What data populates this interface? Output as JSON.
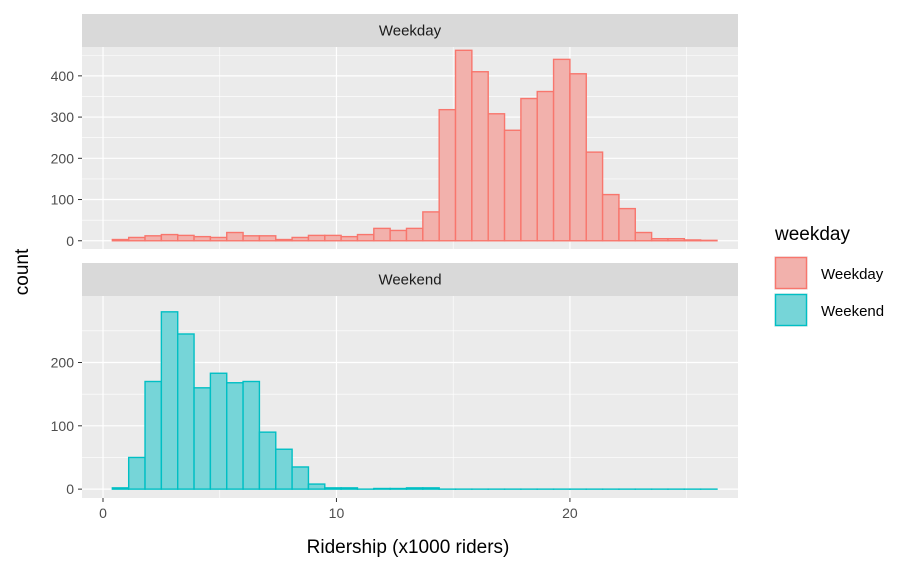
{
  "chart_data": {
    "type": "bar",
    "subtype": "faceted-histogram",
    "xlabel": "Ridership (x1000 riders)",
    "ylabel": "count",
    "xlim": [
      -0.9,
      27.2
    ],
    "x_ticks": [
      0,
      10,
      20
    ],
    "bin_width": 0.7,
    "legend": {
      "title": "weekday",
      "position": "right",
      "entries": [
        {
          "label": "Weekday",
          "fill": "#F8766D",
          "outline": "#F8766D"
        },
        {
          "label": "Weekend",
          "fill": "#00BFC4",
          "outline": "#00BFC4"
        }
      ]
    },
    "panels": [
      {
        "strip": "Weekday",
        "series": "Weekday",
        "ylim": [
          -20,
          470
        ],
        "y_ticks": [
          0,
          100,
          200,
          300,
          400
        ],
        "bins": [
          {
            "x0": 0.4,
            "x1": 1.1,
            "count": 3
          },
          {
            "x0": 1.1,
            "x1": 1.8,
            "count": 8
          },
          {
            "x0": 1.8,
            "x1": 2.5,
            "count": 12
          },
          {
            "x0": 2.5,
            "x1": 3.2,
            "count": 15
          },
          {
            "x0": 3.2,
            "x1": 3.9,
            "count": 13
          },
          {
            "x0": 3.9,
            "x1": 4.6,
            "count": 10
          },
          {
            "x0": 4.6,
            "x1": 5.3,
            "count": 8
          },
          {
            "x0": 5.3,
            "x1": 6.0,
            "count": 20
          },
          {
            "x0": 6.0,
            "x1": 6.7,
            "count": 12
          },
          {
            "x0": 6.7,
            "x1": 7.4,
            "count": 12
          },
          {
            "x0": 7.4,
            "x1": 8.1,
            "count": 3
          },
          {
            "x0": 8.1,
            "x1": 8.8,
            "count": 8
          },
          {
            "x0": 8.8,
            "x1": 9.5,
            "count": 13
          },
          {
            "x0": 9.5,
            "x1": 10.2,
            "count": 13
          },
          {
            "x0": 10.2,
            "x1": 10.9,
            "count": 10
          },
          {
            "x0": 10.9,
            "x1": 11.6,
            "count": 15
          },
          {
            "x0": 11.6,
            "x1": 12.3,
            "count": 30
          },
          {
            "x0": 12.3,
            "x1": 13.0,
            "count": 25
          },
          {
            "x0": 13.0,
            "x1": 13.7,
            "count": 30
          },
          {
            "x0": 13.7,
            "x1": 14.4,
            "count": 70
          },
          {
            "x0": 14.4,
            "x1": 15.1,
            "count": 318
          },
          {
            "x0": 15.1,
            "x1": 15.8,
            "count": 462
          },
          {
            "x0": 15.8,
            "x1": 16.5,
            "count": 410
          },
          {
            "x0": 16.5,
            "x1": 17.2,
            "count": 308
          },
          {
            "x0": 17.2,
            "x1": 17.9,
            "count": 268
          },
          {
            "x0": 17.9,
            "x1": 18.6,
            "count": 345
          },
          {
            "x0": 18.6,
            "x1": 19.3,
            "count": 362
          },
          {
            "x0": 19.3,
            "x1": 20.0,
            "count": 440
          },
          {
            "x0": 20.0,
            "x1": 20.7,
            "count": 405
          },
          {
            "x0": 20.7,
            "x1": 21.4,
            "count": 215
          },
          {
            "x0": 21.4,
            "x1": 22.1,
            "count": 112
          },
          {
            "x0": 22.1,
            "x1": 22.8,
            "count": 78
          },
          {
            "x0": 22.8,
            "x1": 23.5,
            "count": 20
          },
          {
            "x0": 23.5,
            "x1": 24.2,
            "count": 5
          },
          {
            "x0": 24.2,
            "x1": 24.9,
            "count": 5
          },
          {
            "x0": 24.9,
            "x1": 25.6,
            "count": 2
          },
          {
            "x0": 25.6,
            "x1": 26.3,
            "count": 1
          }
        ]
      },
      {
        "strip": "Weekend",
        "series": "Weekend",
        "ylim": [
          -14,
          305
        ],
        "y_ticks": [
          0,
          100,
          200
        ],
        "bins": [
          {
            "x0": 0.4,
            "x1": 1.1,
            "count": 2
          },
          {
            "x0": 1.1,
            "x1": 1.8,
            "count": 50
          },
          {
            "x0": 1.8,
            "x1": 2.5,
            "count": 170
          },
          {
            "x0": 2.5,
            "x1": 3.2,
            "count": 280
          },
          {
            "x0": 3.2,
            "x1": 3.9,
            "count": 245
          },
          {
            "x0": 3.9,
            "x1": 4.6,
            "count": 160
          },
          {
            "x0": 4.6,
            "x1": 5.3,
            "count": 183
          },
          {
            "x0": 5.3,
            "x1": 6.0,
            "count": 168
          },
          {
            "x0": 6.0,
            "x1": 6.7,
            "count": 170
          },
          {
            "x0": 6.7,
            "x1": 7.4,
            "count": 90
          },
          {
            "x0": 7.4,
            "x1": 8.1,
            "count": 63
          },
          {
            "x0": 8.1,
            "x1": 8.8,
            "count": 35
          },
          {
            "x0": 8.8,
            "x1": 9.5,
            "count": 8
          },
          {
            "x0": 9.5,
            "x1": 10.2,
            "count": 2
          },
          {
            "x0": 10.2,
            "x1": 10.9,
            "count": 2
          },
          {
            "x0": 10.9,
            "x1": 11.6,
            "count": 0
          },
          {
            "x0": 11.6,
            "x1": 12.3,
            "count": 1
          },
          {
            "x0": 12.3,
            "x1": 13.0,
            "count": 1
          },
          {
            "x0": 13.0,
            "x1": 13.7,
            "count": 2
          },
          {
            "x0": 13.7,
            "x1": 14.4,
            "count": 2
          },
          {
            "x0": 14.4,
            "x1": 15.1,
            "count": 0
          },
          {
            "x0": 15.1,
            "x1": 15.8,
            "count": 0
          },
          {
            "x0": 15.8,
            "x1": 16.5,
            "count": 0
          },
          {
            "x0": 16.5,
            "x1": 17.2,
            "count": 0
          },
          {
            "x0": 17.2,
            "x1": 17.9,
            "count": 0
          },
          {
            "x0": 17.9,
            "x1": 18.6,
            "count": 0
          },
          {
            "x0": 18.6,
            "x1": 19.3,
            "count": 0
          },
          {
            "x0": 19.3,
            "x1": 20.0,
            "count": 0
          },
          {
            "x0": 20.0,
            "x1": 20.7,
            "count": 0
          },
          {
            "x0": 20.7,
            "x1": 21.4,
            "count": 0
          },
          {
            "x0": 21.4,
            "x1": 22.1,
            "count": 0
          },
          {
            "x0": 22.1,
            "x1": 22.8,
            "count": 0
          },
          {
            "x0": 22.8,
            "x1": 23.5,
            "count": 0
          },
          {
            "x0": 23.5,
            "x1": 24.2,
            "count": 0
          },
          {
            "x0": 24.2,
            "x1": 24.9,
            "count": 0
          },
          {
            "x0": 24.9,
            "x1": 25.6,
            "count": 0
          },
          {
            "x0": 25.6,
            "x1": 26.3,
            "count": 0
          }
        ]
      }
    ],
    "colors": {
      "panel_background": "#EBEBEB",
      "grid": "#FFFFFF",
      "strip_background": "#D9D9D9"
    }
  }
}
